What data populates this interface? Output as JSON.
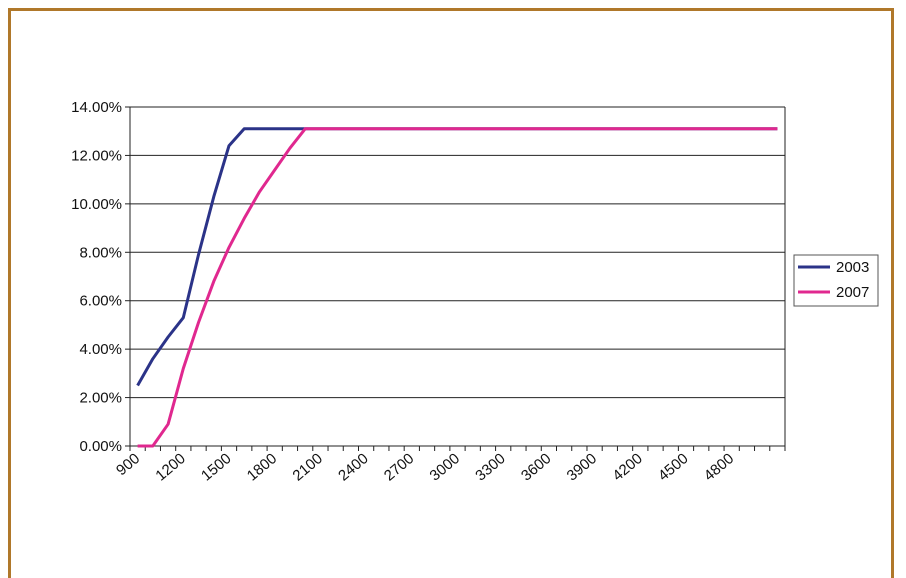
{
  "chart_data": {
    "type": "line",
    "x": [
      900,
      1000,
      1100,
      1200,
      1300,
      1400,
      1500,
      1600,
      1700,
      1800,
      1900,
      2000,
      2100,
      2200,
      2300,
      2400,
      2500,
      2600,
      2700,
      2800,
      2900,
      3000,
      3100,
      3200,
      3300,
      3400,
      3500,
      3600,
      3700,
      3800,
      3900,
      4000,
      4100,
      4200,
      4300,
      4400,
      4500,
      4600,
      4700,
      4800,
      4900,
      5000,
      5100
    ],
    "x_tick_labels": [
      "900",
      "1200",
      "1500",
      "1800",
      "2100",
      "2400",
      "2700",
      "3000",
      "3300",
      "3600",
      "3900",
      "4200",
      "4500",
      "4800"
    ],
    "y_tick_labels": [
      "0.00%",
      "2.00%",
      "4.00%",
      "6.00%",
      "8.00%",
      "10.00%",
      "12.00%",
      "14.00%"
    ],
    "ylim": [
      0,
      14
    ],
    "y_step": 2,
    "grid": true,
    "legend_position": "right",
    "series": [
      {
        "name": "2003",
        "color": "#2b3388",
        "values": [
          2.5,
          3.6,
          4.5,
          5.3,
          7.9,
          10.3,
          12.4,
          13.1,
          13.1,
          13.1,
          13.1,
          13.1,
          13.1,
          13.1,
          13.1,
          13.1,
          13.1,
          13.1,
          13.1,
          13.1,
          13.1,
          13.1,
          13.1,
          13.1,
          13.1,
          13.1,
          13.1,
          13.1,
          13.1,
          13.1,
          13.1,
          13.1,
          13.1,
          13.1,
          13.1,
          13.1,
          13.1,
          13.1,
          13.1,
          13.1,
          13.1,
          13.1,
          13.1
        ]
      },
      {
        "name": "2007",
        "color": "#e0288f",
        "values": [
          0.0,
          0.0,
          0.9,
          3.2,
          5.1,
          6.8,
          8.2,
          9.4,
          10.5,
          11.4,
          12.3,
          13.1,
          13.1,
          13.1,
          13.1,
          13.1,
          13.1,
          13.1,
          13.1,
          13.1,
          13.1,
          13.1,
          13.1,
          13.1,
          13.1,
          13.1,
          13.1,
          13.1,
          13.1,
          13.1,
          13.1,
          13.1,
          13.1,
          13.1,
          13.1,
          13.1,
          13.1,
          13.1,
          13.1,
          13.1,
          13.1,
          13.1,
          13.1
        ]
      }
    ]
  }
}
